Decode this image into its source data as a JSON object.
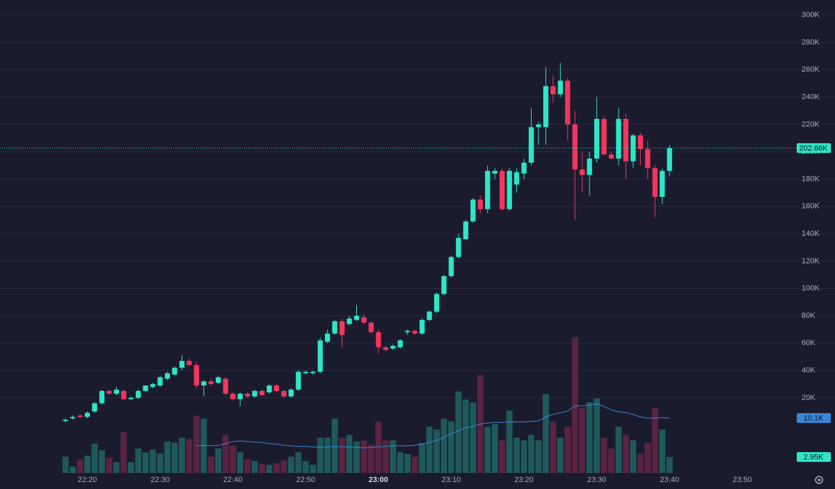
{
  "chart_data": {
    "type": "candlestick",
    "x": [
      "22:17",
      "22:18",
      "22:19",
      "22:20",
      "22:21",
      "22:22",
      "22:23",
      "22:24",
      "22:25",
      "22:26",
      "22:27",
      "22:28",
      "22:29",
      "22:30",
      "22:31",
      "22:32",
      "22:33",
      "22:34",
      "22:35",
      "22:36",
      "22:37",
      "22:38",
      "22:39",
      "22:40",
      "22:41",
      "22:42",
      "22:43",
      "22:44",
      "22:45",
      "22:46",
      "22:47",
      "22:48",
      "22:49",
      "22:50",
      "22:51",
      "22:52",
      "22:53",
      "22:54",
      "22:55",
      "22:56",
      "22:57",
      "22:58",
      "22:59",
      "23:00",
      "23:01",
      "23:02",
      "23:03",
      "23:04",
      "23:05",
      "23:06",
      "23:07",
      "23:08",
      "23:09",
      "23:10",
      "23:11",
      "23:12",
      "23:13",
      "23:14",
      "23:15",
      "23:16",
      "23:17",
      "23:18",
      "23:19",
      "23:20",
      "23:21",
      "23:22",
      "23:23",
      "23:24",
      "23:25",
      "23:26",
      "23:27",
      "23:28",
      "23:29",
      "23:30",
      "23:31",
      "23:32",
      "23:33",
      "23:34",
      "23:35",
      "23:36",
      "23:37",
      "23:38",
      "23:39",
      "23:40"
    ],
    "open": [
      3,
      5,
      7,
      6,
      10,
      16,
      25,
      23,
      25,
      19,
      20,
      25,
      28,
      29,
      34,
      37,
      42,
      47,
      44,
      29,
      32,
      31,
      34,
      23,
      19,
      23,
      21,
      25,
      24,
      29,
      25,
      21,
      26,
      38,
      38,
      39,
      61,
      67,
      76,
      74,
      77,
      79,
      75,
      68,
      57,
      56,
      57,
      68,
      69,
      67,
      77,
      83,
      96,
      109,
      123,
      136,
      149,
      165,
      158,
      184,
      186,
      158,
      176,
      184,
      192,
      218,
      218,
      248,
      242,
      252,
      220,
      187,
      183,
      195,
      224,
      198,
      195,
      224,
      193,
      212,
      202,
      188,
      167,
      186
    ],
    "high": [
      5,
      7,
      8,
      10,
      17,
      26,
      26,
      28,
      26,
      21,
      26,
      29,
      31,
      36,
      39,
      43,
      51,
      49,
      46,
      33,
      34,
      36,
      35,
      24,
      24,
      24,
      26,
      26,
      30,
      30,
      26,
      27,
      40,
      40,
      40,
      64,
      70,
      77,
      78,
      80,
      88,
      81,
      76,
      70,
      58,
      59,
      63,
      70,
      70,
      78,
      84,
      97,
      110,
      124,
      140,
      150,
      166,
      168,
      190,
      188,
      188,
      188,
      188,
      195,
      232,
      222,
      262,
      256,
      265,
      254,
      230,
      200,
      200,
      240,
      226,
      200,
      232,
      228,
      213,
      214,
      208,
      190,
      188,
      205
    ],
    "low": [
      2,
      4,
      5,
      5,
      9,
      15,
      22,
      22,
      18,
      18,
      19,
      24,
      27,
      28,
      33,
      36,
      40,
      43,
      27,
      21,
      29,
      30,
      22,
      18,
      14,
      20,
      20,
      21,
      23,
      24,
      20,
      20,
      25,
      37,
      37,
      38,
      60,
      66,
      57,
      73,
      76,
      74,
      67,
      52,
      54,
      55,
      56,
      66,
      66,
      66,
      76,
      82,
      95,
      108,
      122,
      135,
      148,
      155,
      155,
      180,
      157,
      157,
      170,
      180,
      190,
      205,
      205,
      236,
      240,
      208,
      150,
      170,
      168,
      192,
      198,
      195,
      190,
      180,
      188,
      190,
      180,
      152,
      162,
      182
    ],
    "close": [
      4,
      6,
      6,
      9,
      16,
      25,
      23,
      26,
      19,
      20,
      25,
      29,
      30,
      35,
      38,
      42,
      47,
      44,
      29,
      32,
      30,
      35,
      23,
      19,
      23,
      21,
      25,
      22,
      29,
      25,
      21,
      26,
      39,
      39,
      39,
      62,
      67,
      76,
      66,
      78,
      80,
      75,
      68,
      57,
      55,
      58,
      62,
      69,
      67,
      77,
      83,
      96,
      109,
      123,
      137,
      149,
      165,
      158,
      186,
      186,
      158,
      186,
      185,
      192,
      218,
      220,
      248,
      242,
      252,
      220,
      187,
      183,
      195,
      224,
      198,
      195,
      224,
      193,
      212,
      202,
      188,
      167,
      186,
      202.66
    ],
    "volume": [
      3.0,
      1.2,
      2.5,
      3.2,
      5.4,
      4.2,
      2.8,
      2.0,
      7.5,
      2.0,
      4.5,
      3.8,
      4.3,
      3.6,
      5.8,
      5.6,
      6.5,
      6.2,
      10.5,
      10.0,
      3.0,
      4.5,
      7.0,
      5.0,
      3.8,
      2.5,
      2.2,
      1.7,
      1.5,
      1.8,
      2.3,
      3.0,
      3.8,
      2.2,
      1.5,
      6.5,
      6.5,
      10.0,
      6.5,
      7.0,
      5.8,
      6.0,
      5.2,
      9.5,
      6.0,
      6.0,
      3.8,
      3.5,
      3.0,
      5.5,
      8.5,
      8.0,
      10.0,
      9.5,
      15.0,
      13.5,
      13.0,
      18.0,
      8.5,
      9.0,
      6.0,
      11.5,
      6.5,
      6.0,
      7.0,
      6.0,
      14.5,
      9.5,
      6.5,
      8.5,
      25.0,
      12.0,
      13.0,
      13.7,
      6.5,
      4.5,
      8.5,
      7.0,
      6.0,
      3.5,
      5.5,
      12.0,
      8.0,
      2.95
    ],
    "vol_ma": [
      null,
      null,
      null,
      null,
      null,
      null,
      null,
      null,
      null,
      null,
      null,
      null,
      null,
      null,
      null,
      null,
      null,
      null,
      5.0,
      5.1,
      5.0,
      5.1,
      5.4,
      5.8,
      5.9,
      5.8,
      5.7,
      5.6,
      5.4,
      5.3,
      5.1,
      5.0,
      4.9,
      4.9,
      4.8,
      4.7,
      4.8,
      4.9,
      4.8,
      4.8,
      4.7,
      4.6,
      4.7,
      4.8,
      4.9,
      5.0,
      5.0,
      5.0,
      5.1,
      5.3,
      5.6,
      6.0,
      6.6,
      7.2,
      7.8,
      8.3,
      8.6,
      9.0,
      9.2,
      9.3,
      9.3,
      9.4,
      9.4,
      9.4,
      9.5,
      9.6,
      10.3,
      10.8,
      11.1,
      11.4,
      12.3,
      12.4,
      12.5,
      12.7,
      12.2,
      11.6,
      11.3,
      11.1,
      10.8,
      10.3,
      10.1,
      10.1,
      10.2,
      10.1
    ],
    "xlim": [
      "22:08",
      "23:57"
    ],
    "xticks": [
      "22:20",
      "22:30",
      "22:40",
      "22:50",
      "23:00",
      "23:10",
      "23:20",
      "23:30",
      "23:40",
      "23:50"
    ],
    "ylim": [
      -35,
      311
    ],
    "yticks": [
      {
        "value": 20,
        "label": "20K"
      },
      {
        "value": 40,
        "label": "40K"
      },
      {
        "value": 60,
        "label": "60K"
      },
      {
        "value": 80,
        "label": "80K"
      },
      {
        "value": 100,
        "label": "100K"
      },
      {
        "value": 120,
        "label": "120K"
      },
      {
        "value": 140,
        "label": "140K"
      },
      {
        "value": 160,
        "label": "160K"
      },
      {
        "value": 180,
        "label": "180K"
      },
      {
        "value": 200,
        "label": "200K"
      },
      {
        "value": 220,
        "label": "220K"
      },
      {
        "value": 240,
        "label": "240K"
      },
      {
        "value": 260,
        "label": "260K"
      },
      {
        "value": 280,
        "label": "280K"
      },
      {
        "value": 300,
        "label": "300K"
      }
    ],
    "vol_ylim": [
      0,
      87
    ],
    "grid": true,
    "up_color": "#2ee6c6",
    "down_color": "#f2365e",
    "vol_up_color": "#1e5a5c",
    "vol_down_color": "#5a2440",
    "ma_color": "#3a86d8",
    "last_price_label": "202.66K",
    "ma_label": "10.1K",
    "volume_label": "2.95K"
  }
}
